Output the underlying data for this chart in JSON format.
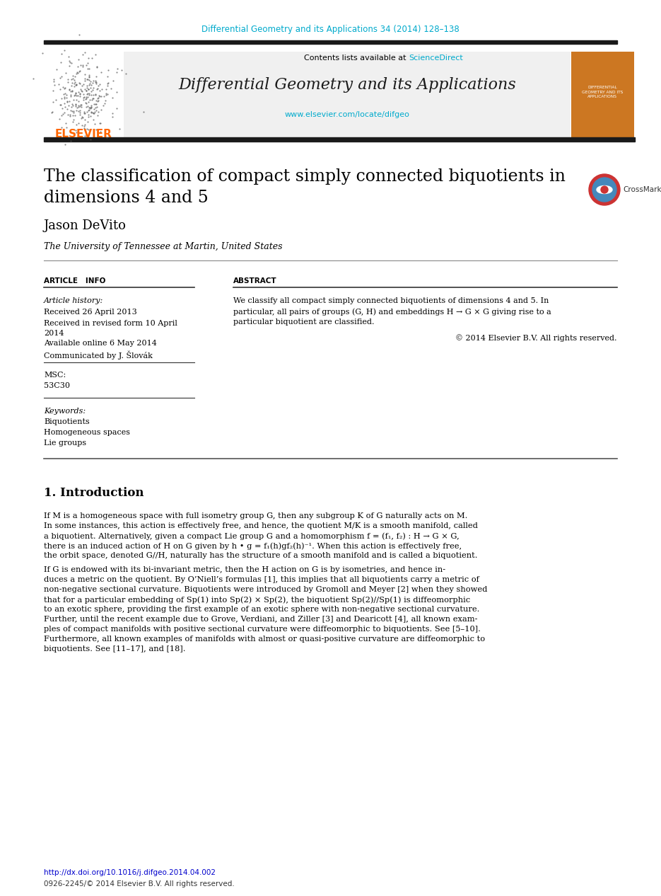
{
  "bg_color": "#ffffff",
  "header_journal_text": "Differential Geometry and its Applications 34 (2014) 128–138",
  "header_journal_color": "#00aacc",
  "header_bar_color": "#1a1a1a",
  "journal_banner_bg": "#f0f0f0",
  "journal_banner_text": "Differential Geometry and its Applications",
  "journal_banner_sub1": "Contents lists available at ",
  "journal_banner_sciencedirect": "ScienceDirect",
  "journal_banner_sciencedirect_color": "#00aacc",
  "journal_banner_url": "www.elsevier.com/locate/difgeo",
  "journal_banner_url_color": "#00aacc",
  "elsevier_text": "ELSEVIER",
  "elsevier_color": "#ff6600",
  "article_title_line1": "The classification of compact simply connected biquotients in",
  "article_title_line2": "dimensions 4 and 5",
  "author_name": "Jason DeVito",
  "author_affiliation": "The University of Tennessee at Martin, United States",
  "section_article_info": "ARTICLE   INFO",
  "section_abstract": "ABSTRACT",
  "article_history_label": "Article history:",
  "received_1": "Received 26 April 2013",
  "received_2a": "Received in revised form 10 April",
  "received_2b": "2014",
  "available": "Available online 6 May 2014",
  "communicated": "Communicated by J. Šlovák",
  "msc_label": "MSC:",
  "msc_code": "53C30",
  "keywords_label": "Keywords:",
  "keyword1": "Biquotients",
  "keyword2": "Homogeneous spaces",
  "keyword3": "Lie groups",
  "abstract_line1": "We classify all compact simply connected biquotients of dimensions 4 and 5. In",
  "abstract_line2": "particular, all pairs of groups (G, H) and embeddings H → G × G giving rise to a",
  "abstract_line3": "particular biquotient are classified.",
  "copyright_text": "© 2014 Elsevier B.V. All rights reserved.",
  "intro_heading": "1. Introduction",
  "intro_para1": [
    "If M is a homogeneous space with full isometry group G, then any subgroup K of G naturally acts on M.",
    "In some instances, this action is effectively free, and hence, the quotient M/K is a smooth manifold, called",
    "a biquotient. Alternatively, given a compact Lie group G and a homomorphism f = (f₁, f₂) : H → G × G,",
    "there is an induced action of H on G given by h • g = f₁(h)gf₂(h)⁻¹. When this action is effectively free,",
    "the orbit space, denoted G∕∕H, naturally has the structure of a smooth manifold and is called a biquotient."
  ],
  "intro_para2": [
    "If G is endowed with its bi-invariant metric, then the H action on G is by isometries, and hence in-",
    "duces a metric on the quotient. By O’Niell’s formulas [1], this implies that all biquotients carry a metric of",
    "non-negative sectional curvature. Biquotients were introduced by Gromoll and Meyer [2] when they showed",
    "that for a particular embedding of Sp(1) into Sp(2) × Sp(2), the biquotient Sp(2)∕∕Sp(1) is diffeomorphic",
    "to an exotic sphere, providing the first example of an exotic sphere with non-negative sectional curvature.",
    "Further, until the recent example due to Grove, Verdiani, and Ziller [3] and Dearicott [4], all known exam-",
    "ples of compact manifolds with positive sectional curvature were diffeomorphic to biquotients. See [5–10].",
    "Furthermore, all known examples of manifolds with almost or quasi-positive curvature are diffeomorphic to",
    "biquotients. See [11–17], and [18]."
  ],
  "footer_doi": "http://dx.doi.org/10.1016/j.difgeo.2014.04.002",
  "footer_issn": "0926-2245/© 2014 Elsevier B.V. All rights reserved.",
  "footer_doi_color": "#0000cc",
  "text_color": "#000000",
  "small_text_color": "#333333"
}
